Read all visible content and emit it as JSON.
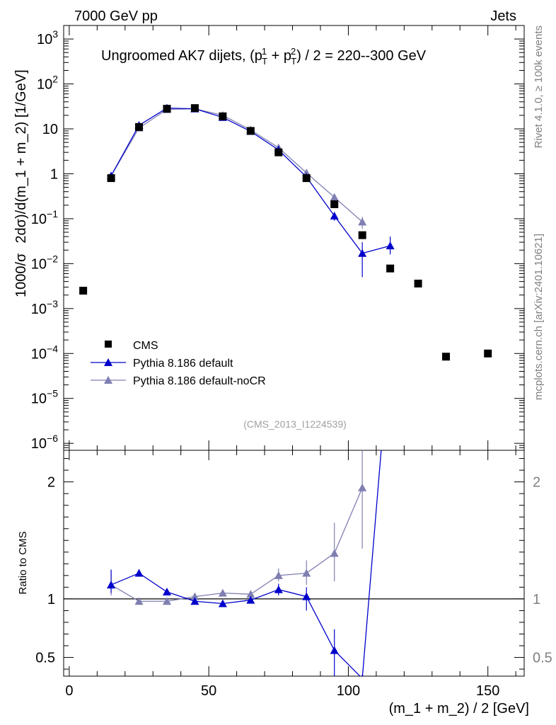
{
  "header": {
    "left": "7000 GeV pp",
    "right": "Jets",
    "side_top": "Rivet 4.1.0, ≥ 100k events",
    "side_bottom": "mcplots.cern.ch [arXiv:2401.10621]"
  },
  "colors": {
    "cms": "#000000",
    "pythia_default": "#0000cc",
    "pythia_nocr": "#7f7fb2",
    "frame": "#000000"
  },
  "chart_data": [
    {
      "type": "scatter",
      "panel": "main",
      "title": "Ungroomed AK7 dijets, (p_T^1 + p_T^2) / 2 = 220--300 GeV",
      "title_parts": {
        "prefix": "Ungroomed AK7 dijets, (p",
        "sub": "T",
        "sup1": "1",
        "plus": " + p",
        "sup2": "2",
        "suffix": ") / 2 = 220--300 GeV"
      },
      "ylabel": "1000/σ  2dσ)/d(m_1 + m_2) [1/GeV]",
      "ylabel_parts": {
        "a": "1000/σ",
        "b": "2dσ)/d(m_1 + m_2) [1/GeV]"
      },
      "yscale": "log",
      "ylim": [
        7e-07,
        2000
      ],
      "xlim": [
        -2,
        163
      ],
      "yticks": [
        {
          "v": 1e-06,
          "label": "10^-6"
        },
        {
          "v": 1e-05,
          "label": "10^-5"
        },
        {
          "v": 0.0001,
          "label": "10^-4"
        },
        {
          "v": 0.001,
          "label": "10^-3"
        },
        {
          "v": 0.01,
          "label": "10^-2"
        },
        {
          "v": 0.1,
          "label": "10^-1"
        },
        {
          "v": 1,
          "label": "1"
        },
        {
          "v": 10,
          "label": "10"
        },
        {
          "v": 100,
          "label": "10^2"
        },
        {
          "v": 1000,
          "label": "10^3"
        }
      ],
      "watermark": "(CMS_2013_I1224539)",
      "legend": {
        "placement": "bottom-left",
        "entries": [
          "CMS",
          "Pythia 8.186 default",
          "Pythia 8.186 default-noCR"
        ]
      },
      "series": [
        {
          "name": "CMS",
          "marker": "square",
          "x": [
            5,
            15,
            25,
            35,
            45,
            55,
            65,
            75,
            85,
            95,
            105,
            115,
            125,
            135,
            150
          ],
          "y": [
            0.0025,
            0.8,
            11,
            28,
            29,
            19,
            9,
            3,
            0.8,
            0.21,
            0.043,
            0.0078,
            0.0036,
            8.5e-05,
            0.0001
          ]
        },
        {
          "name": "Pythia 8.186 default",
          "marker": "triangle",
          "x": [
            15,
            25,
            35,
            45,
            55,
            65,
            75,
            85,
            95,
            105,
            115
          ],
          "y": [
            0.9,
            12,
            29,
            28,
            18,
            8.8,
            3.4,
            0.85,
            0.115,
            0.017,
            0.025
          ],
          "err": [
            null,
            null,
            null,
            null,
            null,
            null,
            null,
            null,
            [
              0.09,
              0.14
            ],
            [
              0.005,
              0.03
            ],
            [
              0.016,
              0.04
            ]
          ]
        },
        {
          "name": "Pythia 8.186 default-noCR",
          "marker": "triangle",
          "x": [
            15,
            25,
            35,
            45,
            55,
            65,
            75,
            85,
            95,
            105
          ],
          "y": [
            0.9,
            10.5,
            27,
            28,
            20,
            9.5,
            3.8,
            1.05,
            0.3,
            0.085
          ],
          "err": [
            null,
            null,
            null,
            null,
            null,
            null,
            null,
            null,
            [
              0.26,
              0.34
            ],
            [
              0.06,
              0.11
            ]
          ]
        }
      ]
    },
    {
      "type": "line",
      "panel": "ratio",
      "ylabel": "Ratio to CMS",
      "xlabel": "(m_1 + m_2) / 2 [GeV]",
      "xlim": [
        -2,
        163
      ],
      "ylim": [
        0.34,
        2.27
      ],
      "xticks": [
        0,
        50,
        100,
        150
      ],
      "yticks": [
        {
          "v": 0.5,
          "label": "0.5"
        },
        {
          "v": 1,
          "label": "1"
        },
        {
          "v": 2,
          "label": "2"
        }
      ],
      "reference_line": 1,
      "series": [
        {
          "name": "Pythia 8.186 default",
          "x": [
            15,
            25,
            35,
            45,
            55,
            65,
            75,
            85,
            95,
            105,
            115
          ],
          "y": [
            1.12,
            1.22,
            1.06,
            0.98,
            0.96,
            0.99,
            1.08,
            1.02,
            0.56,
            0.32,
            3.2
          ],
          "err": [
            [
              1.05,
              1.25
            ],
            [
              1.19,
              1.25
            ],
            [
              1.04,
              1.08
            ],
            null,
            null,
            [
              0.97,
              1.02
            ],
            [
              1.03,
              1.13
            ],
            [
              0.9,
              1.1
            ],
            [
              0.2,
              0.74
            ],
            null,
            null
          ]
        },
        {
          "name": "Pythia 8.186 default-noCR",
          "x": [
            15,
            25,
            35,
            45,
            55,
            65,
            75,
            85,
            95,
            105
          ],
          "y": [
            1.12,
            0.98,
            0.98,
            1.02,
            1.05,
            1.04,
            1.2,
            1.22,
            1.39,
            1.95
          ],
          "err": [
            [
              1.03,
              1.25
            ],
            null,
            null,
            null,
            null,
            [
              1.02,
              1.07
            ],
            [
              1.15,
              1.26
            ],
            [
              1.12,
              1.33
            ],
            [
              1.15,
              1.65
            ],
            [
              1.43,
              2.4
            ]
          ]
        }
      ]
    }
  ]
}
